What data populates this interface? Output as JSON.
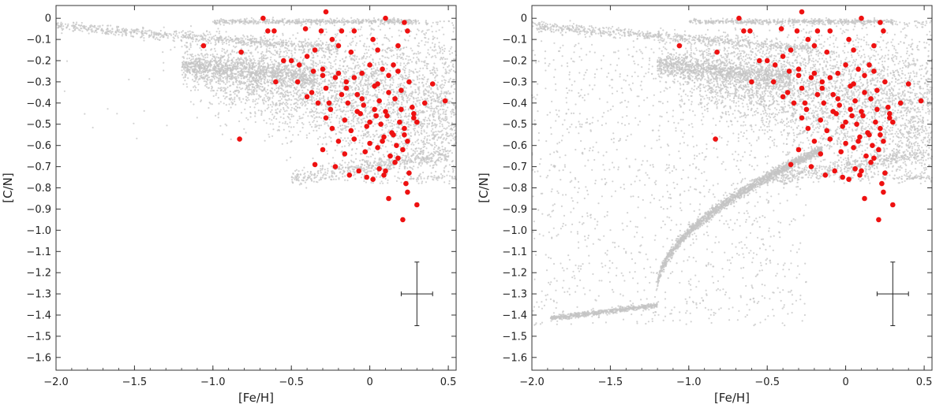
{
  "colors": {
    "background_points": "#c4c4c4",
    "observed_points": "#ee1111",
    "axes": "#333333",
    "error_bar": "#222222"
  },
  "chart_data": [
    {
      "type": "scatter",
      "panel": "left",
      "title": "",
      "xlabel": "[Fe/H]",
      "ylabel": "[C/N]",
      "xlim": [
        -2.0,
        0.55
      ],
      "ylim": [
        -1.66,
        0.06
      ],
      "xticks": [
        -2.0,
        -1.5,
        -1.0,
        -0.5,
        0,
        0.5
      ],
      "xtick_labels": [
        "−2.0",
        "−1.5",
        "−1.0",
        "−0.5",
        "0",
        "0.5"
      ],
      "yticks": [
        0,
        -0.1,
        -0.2,
        -0.3,
        -0.4,
        -0.5,
        -0.6,
        -0.7,
        -0.8,
        -0.9,
        -1.0,
        -1.1,
        -1.2,
        -1.3,
        -1.4,
        -1.5,
        -1.6
      ],
      "ytick_labels": [
        "0",
        "−0.1",
        "−0.2",
        "−0.3",
        "−0.4",
        "−0.5",
        "−0.6",
        "−0.7",
        "−0.8",
        "−0.9",
        "−1.0",
        "−1.1",
        "−1.2",
        "−1.3",
        "−1.4",
        "−1.5",
        "−1.6"
      ],
      "grid": false,
      "legend": "none",
      "error_bar": {
        "x": 0.3,
        "y": -1.3,
        "xerr": 0.1,
        "yerr": 0.15
      },
      "observed": {
        "x": [
          -0.28,
          0.1,
          0.22,
          -0.68,
          -0.65,
          -0.61,
          -0.41,
          -0.31,
          -0.24,
          -0.18,
          -0.1,
          0.02,
          0.24,
          -1.06,
          -0.82,
          -0.55,
          -0.5,
          -0.45,
          -0.4,
          -0.35,
          -0.2,
          -0.12,
          0.05,
          0.18,
          -0.6,
          -0.46,
          -0.36,
          -0.3,
          -0.22,
          -0.15,
          -0.05,
          0.08,
          0.15,
          0.25,
          -0.37,
          -0.28,
          -0.18,
          -0.08,
          0.03,
          0.12,
          0.2,
          0.4,
          -0.33,
          -0.25,
          -0.14,
          -0.04,
          0.06,
          0.16,
          0.27,
          0.35,
          0.48,
          -0.28,
          -0.16,
          -0.06,
          0.04,
          0.1,
          0.19,
          0.28,
          -0.24,
          -0.12,
          -0.02,
          0.07,
          0.14,
          0.22,
          0.3,
          -0.2,
          -0.1,
          0.0,
          0.09,
          0.17,
          0.24,
          -0.83,
          -0.3,
          -0.16,
          -0.03,
          0.05,
          0.13,
          0.21,
          -0.35,
          -0.22,
          -0.07,
          0.06,
          0.16,
          0.25,
          -0.13,
          0.02,
          0.1,
          0.18,
          -0.02,
          0.09,
          0.23,
          0.24,
          0.12,
          0.3,
          0.21,
          -0.3,
          -0.2,
          -0.1,
          0.0,
          0.05,
          0.12,
          0.18,
          -0.4,
          -0.26,
          -0.08,
          0.03,
          0.11,
          0.2,
          0.15,
          0.22,
          0.08,
          -0.05,
          0.28,
          -0.15,
          0.0
        ],
        "y": [
          0.03,
          0.0,
          -0.02,
          0.0,
          -0.06,
          -0.06,
          -0.05,
          -0.06,
          -0.1,
          -0.06,
          -0.06,
          -0.1,
          -0.06,
          -0.13,
          -0.16,
          -0.2,
          -0.2,
          -0.22,
          -0.18,
          -0.15,
          -0.13,
          -0.16,
          -0.15,
          -0.13,
          -0.3,
          -0.3,
          -0.25,
          -0.27,
          -0.28,
          -0.3,
          -0.26,
          -0.24,
          -0.22,
          -0.3,
          -0.35,
          -0.33,
          -0.36,
          -0.36,
          -0.32,
          -0.35,
          -0.34,
          -0.31,
          -0.4,
          -0.43,
          -0.4,
          -0.41,
          -0.39,
          -0.38,
          -0.42,
          -0.4,
          -0.39,
          -0.47,
          -0.48,
          -0.45,
          -0.46,
          -0.44,
          -0.49,
          -0.47,
          -0.52,
          -0.53,
          -0.51,
          -0.5,
          -0.54,
          -0.52,
          -0.49,
          -0.58,
          -0.57,
          -0.59,
          -0.56,
          -0.6,
          -0.58,
          -0.57,
          -0.62,
          -0.64,
          -0.63,
          -0.61,
          -0.65,
          -0.62,
          -0.69,
          -0.7,
          -0.72,
          -0.71,
          -0.68,
          -0.73,
          -0.74,
          -0.76,
          -0.72,
          -0.66,
          -0.75,
          -0.74,
          -0.78,
          -0.82,
          -0.85,
          -0.88,
          -0.95,
          -0.24,
          -0.26,
          -0.28,
          -0.22,
          -0.31,
          -0.27,
          -0.25,
          -0.37,
          -0.4,
          -0.44,
          -0.43,
          -0.46,
          -0.43,
          -0.55,
          -0.55,
          -0.58,
          -0.38,
          -0.45,
          -0.33,
          -0.49
        ]
      }
    },
    {
      "type": "scatter",
      "panel": "right",
      "title": "",
      "xlabel": "[Fe/H]",
      "ylabel": "[C/N]",
      "xlim": [
        -2.0,
        0.55
      ],
      "ylim": [
        -1.66,
        0.06
      ],
      "xticks": [
        -2.0,
        -1.5,
        -1.0,
        -0.5,
        0,
        0.5
      ],
      "xtick_labels": [
        "−2.0",
        "−1.5",
        "−1.0",
        "−0.5",
        "0",
        "0.5"
      ],
      "yticks": [
        0,
        -0.1,
        -0.2,
        -0.3,
        -0.4,
        -0.5,
        -0.6,
        -0.7,
        -0.8,
        -0.9,
        -1.0,
        -1.1,
        -1.2,
        -1.3,
        -1.4,
        -1.5,
        -1.6
      ],
      "ytick_labels": [
        "0",
        "−0.1",
        "−0.2",
        "−0.3",
        "−0.4",
        "−0.5",
        "−0.6",
        "−0.7",
        "−0.8",
        "−0.9",
        "−1.0",
        "−1.1",
        "−1.2",
        "−1.3",
        "−1.4",
        "−1.5",
        "−1.6"
      ],
      "grid": false,
      "legend": "none",
      "error_bar": {
        "x": 0.3,
        "y": -1.3,
        "xerr": 0.1,
        "yerr": 0.15
      },
      "observed": {
        "x": [
          -0.28,
          0.1,
          0.22,
          -0.68,
          -0.65,
          -0.61,
          -0.41,
          -0.31,
          -0.24,
          -0.18,
          -0.1,
          0.02,
          0.24,
          -1.06,
          -0.82,
          -0.55,
          -0.5,
          -0.45,
          -0.4,
          -0.35,
          -0.2,
          -0.12,
          0.05,
          0.18,
          -0.6,
          -0.46,
          -0.36,
          -0.3,
          -0.22,
          -0.15,
          -0.05,
          0.08,
          0.15,
          0.25,
          -0.37,
          -0.28,
          -0.18,
          -0.08,
          0.03,
          0.12,
          0.2,
          0.4,
          -0.33,
          -0.25,
          -0.14,
          -0.04,
          0.06,
          0.16,
          0.27,
          0.35,
          0.48,
          -0.28,
          -0.16,
          -0.06,
          0.04,
          0.1,
          0.19,
          0.28,
          -0.24,
          -0.12,
          -0.02,
          0.07,
          0.14,
          0.22,
          0.3,
          -0.2,
          -0.1,
          0.0,
          0.09,
          0.17,
          0.24,
          -0.83,
          -0.3,
          -0.16,
          -0.03,
          0.05,
          0.13,
          0.21,
          -0.35,
          -0.22,
          -0.07,
          0.06,
          0.16,
          0.25,
          -0.13,
          0.02,
          0.1,
          0.18,
          -0.02,
          0.09,
          0.23,
          0.24,
          0.12,
          0.3,
          0.21,
          -0.3,
          -0.2,
          -0.1,
          0.0,
          0.05,
          0.12,
          0.18,
          -0.4,
          -0.26,
          -0.08,
          0.03,
          0.11,
          0.2,
          0.15,
          0.22,
          0.08,
          -0.05,
          0.28,
          -0.15,
          0.0
        ],
        "y": [
          0.03,
          0.0,
          -0.02,
          0.0,
          -0.06,
          -0.06,
          -0.05,
          -0.06,
          -0.1,
          -0.06,
          -0.06,
          -0.1,
          -0.06,
          -0.13,
          -0.16,
          -0.2,
          -0.2,
          -0.22,
          -0.18,
          -0.15,
          -0.13,
          -0.16,
          -0.15,
          -0.13,
          -0.3,
          -0.3,
          -0.25,
          -0.27,
          -0.28,
          -0.3,
          -0.26,
          -0.24,
          -0.22,
          -0.3,
          -0.35,
          -0.33,
          -0.36,
          -0.36,
          -0.32,
          -0.35,
          -0.34,
          -0.31,
          -0.4,
          -0.43,
          -0.4,
          -0.41,
          -0.39,
          -0.38,
          -0.42,
          -0.4,
          -0.39,
          -0.47,
          -0.48,
          -0.45,
          -0.46,
          -0.44,
          -0.49,
          -0.47,
          -0.52,
          -0.53,
          -0.51,
          -0.5,
          -0.54,
          -0.52,
          -0.49,
          -0.58,
          -0.57,
          -0.59,
          -0.56,
          -0.6,
          -0.58,
          -0.57,
          -0.62,
          -0.64,
          -0.63,
          -0.61,
          -0.65,
          -0.62,
          -0.69,
          -0.7,
          -0.72,
          -0.71,
          -0.68,
          -0.73,
          -0.74,
          -0.76,
          -0.72,
          -0.66,
          -0.75,
          -0.74,
          -0.78,
          -0.82,
          -0.85,
          -0.88,
          -0.95,
          -0.24,
          -0.26,
          -0.28,
          -0.22,
          -0.31,
          -0.27,
          -0.25,
          -0.37,
          -0.4,
          -0.44,
          -0.43,
          -0.46,
          -0.43,
          -0.55,
          -0.55,
          -0.58,
          -0.38,
          -0.45,
          -0.33,
          -0.49
        ]
      }
    }
  ]
}
